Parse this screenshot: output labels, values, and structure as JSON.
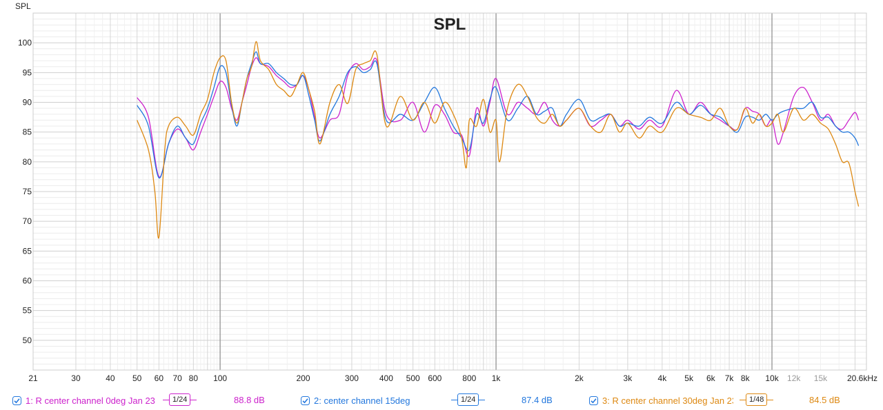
{
  "chart_data": {
    "type": "line",
    "title": "SPL",
    "ylabel": "SPL",
    "xlabel": "",
    "x_unit": "kHz",
    "xscale": "log",
    "xlim": [
      21,
      22000
    ],
    "ylim": [
      45,
      105
    ],
    "yticks": [
      50,
      55,
      60,
      65,
      70,
      75,
      80,
      85,
      90,
      95,
      100
    ],
    "xtick_labels": [
      {
        "f": 21,
        "label": "21"
      },
      {
        "f": 30,
        "label": "30"
      },
      {
        "f": 40,
        "label": "40"
      },
      {
        "f": 50,
        "label": "50"
      },
      {
        "f": 60,
        "label": "60"
      },
      {
        "f": 70,
        "label": "70"
      },
      {
        "f": 80,
        "label": "80"
      },
      {
        "f": 100,
        "label": "100"
      },
      {
        "f": 200,
        "label": "200"
      },
      {
        "f": 300,
        "label": "300"
      },
      {
        "f": 400,
        "label": "400"
      },
      {
        "f": 500,
        "label": "500"
      },
      {
        "f": 600,
        "label": "600"
      },
      {
        "f": 800,
        "label": "800"
      },
      {
        "f": 1000,
        "label": "1k"
      },
      {
        "f": 2000,
        "label": "2k"
      },
      {
        "f": 3000,
        "label": "3k"
      },
      {
        "f": 4000,
        "label": "4k"
      },
      {
        "f": 5000,
        "label": "5k"
      },
      {
        "f": 6000,
        "label": "6k"
      },
      {
        "f": 7000,
        "label": "7k"
      },
      {
        "f": 8000,
        "label": "8k"
      },
      {
        "f": 10000,
        "label": "10k"
      },
      {
        "f": 12000,
        "label": "12k"
      },
      {
        "f": 15000,
        "label": "15k"
      },
      {
        "f": 20600,
        "label": "20.6kHz"
      }
    ],
    "grid": true,
    "legend_position": "bottom",
    "series": [
      {
        "name": "1: R center channel 0deg Jan 23",
        "color": "#cc22cc",
        "smoothing": "1/24",
        "average": "88.8 dB",
        "x": [
          50,
          55,
          60,
          65,
          70,
          75,
          80,
          85,
          90,
          95,
          100,
          105,
          110,
          115,
          120,
          125,
          130,
          135,
          140,
          150,
          160,
          170,
          180,
          190,
          200,
          210,
          220,
          230,
          250,
          270,
          290,
          310,
          330,
          350,
          370,
          400,
          450,
          500,
          550,
          600,
          650,
          700,
          750,
          800,
          850,
          900,
          950,
          1000,
          1100,
          1200,
          1300,
          1400,
          1500,
          1600,
          1700,
          1800,
          2000,
          2200,
          2400,
          2600,
          2800,
          3000,
          3300,
          3600,
          4000,
          4500,
          5000,
          5500,
          6000,
          6500,
          7000,
          7500,
          8000,
          8500,
          9000,
          9500,
          10000,
          10500,
          11000,
          12000,
          13000,
          14000,
          15000,
          16000,
          17000,
          18000,
          19000,
          20000,
          20600
        ],
        "y": [
          90.8,
          87.5,
          77.5,
          83,
          85.5,
          84,
          82,
          85,
          88,
          91,
          93.5,
          92.5,
          89,
          87,
          90,
          93,
          96,
          97.5,
          96.5,
          96,
          94.5,
          93.5,
          92.5,
          93,
          94.5,
          92,
          87.5,
          84,
          87,
          88,
          94.5,
          96.5,
          95.5,
          96,
          97,
          88,
          87,
          90,
          85,
          89.5,
          88,
          85,
          84.5,
          81,
          89,
          86,
          90,
          94,
          88,
          90,
          89,
          88,
          90,
          87,
          86,
          87,
          89,
          86,
          87,
          88,
          86,
          87,
          85.5,
          87,
          86,
          92,
          88,
          90,
          88,
          87,
          86,
          85.5,
          89,
          88.5,
          88,
          86,
          87,
          83,
          85,
          91,
          92.5,
          90,
          87,
          88,
          86,
          85.5,
          87,
          88.3,
          87
        ]
      },
      {
        "name": "2: center channel 15deg",
        "color": "#2277dd",
        "smoothing": "1/24",
        "average": "87.4 dB",
        "x": [
          50,
          55,
          60,
          65,
          70,
          75,
          80,
          85,
          90,
          95,
          100,
          105,
          110,
          115,
          120,
          125,
          130,
          135,
          140,
          150,
          160,
          170,
          180,
          190,
          200,
          210,
          220,
          230,
          250,
          270,
          290,
          310,
          330,
          350,
          370,
          400,
          450,
          500,
          550,
          600,
          650,
          700,
          750,
          800,
          850,
          900,
          950,
          1000,
          1100,
          1200,
          1300,
          1400,
          1500,
          1600,
          1700,
          1800,
          2000,
          2200,
          2400,
          2600,
          2800,
          3000,
          3300,
          3600,
          4000,
          4500,
          5000,
          5500,
          6000,
          6500,
          7000,
          7500,
          8000,
          8500,
          9000,
          9500,
          10000,
          10500,
          11000,
          12000,
          13000,
          14000,
          15000,
          16000,
          17000,
          18000,
          19000,
          20000,
          20600
        ],
        "y": [
          89.5,
          86,
          77.3,
          83,
          86,
          84,
          83,
          86.5,
          89,
          92.5,
          96,
          95,
          89.5,
          86,
          90,
          94,
          96.5,
          98.5,
          96.5,
          96.5,
          95,
          94,
          93,
          93,
          94.5,
          91,
          87,
          83.5,
          88,
          91,
          95,
          96,
          95,
          95.5,
          96.5,
          87,
          88,
          87,
          90,
          92.5,
          89,
          86,
          84,
          82,
          88,
          86.5,
          90.5,
          92.5,
          87,
          89,
          91,
          88,
          88.5,
          89,
          86,
          88,
          90.5,
          87,
          87.5,
          88,
          86,
          86.5,
          86,
          87.5,
          86.5,
          90,
          88,
          89.5,
          88,
          87.5,
          86,
          85,
          87.5,
          87.5,
          87,
          88,
          87,
          88,
          88.5,
          89,
          89,
          90,
          87.5,
          87.5,
          86,
          85,
          85,
          84,
          82.7
        ]
      },
      {
        "name": "3: R center channel 30deg Jan 23",
        "color": "#dd8811",
        "smoothing": "1/48",
        "average": "84.5 dB",
        "x": [
          50,
          55,
          58,
          60,
          63,
          65,
          70,
          75,
          80,
          85,
          90,
          95,
          100,
          105,
          110,
          115,
          120,
          125,
          130,
          135,
          140,
          150,
          160,
          170,
          180,
          190,
          200,
          210,
          220,
          230,
          250,
          270,
          290,
          310,
          330,
          350,
          370,
          400,
          450,
          500,
          550,
          600,
          650,
          700,
          750,
          780,
          800,
          850,
          900,
          950,
          1000,
          1030,
          1100,
          1200,
          1300,
          1400,
          1500,
          1600,
          1700,
          1800,
          2000,
          2200,
          2400,
          2600,
          2800,
          3000,
          3300,
          3600,
          4000,
          4500,
          5000,
          5500,
          6000,
          6500,
          7000,
          7500,
          8000,
          8500,
          9000,
          9500,
          10000,
          10500,
          11000,
          12000,
          13000,
          14000,
          15000,
          16000,
          17000,
          18000,
          19000,
          20000,
          20600
        ],
        "y": [
          87,
          82,
          75,
          67.3,
          82,
          86,
          87.5,
          86,
          84.5,
          88,
          90.5,
          95,
          97.5,
          97,
          90,
          86.5,
          90,
          94,
          96,
          100.2,
          97,
          95.5,
          93,
          92,
          91,
          93,
          95,
          92,
          88.5,
          83,
          90,
          93,
          89.8,
          95.5,
          96.5,
          97,
          98,
          86,
          91,
          87,
          90,
          86.5,
          90,
          88,
          84,
          79,
          87,
          86,
          90.5,
          85,
          87,
          80,
          89,
          93,
          91,
          87.5,
          86.5,
          88,
          86,
          87,
          89,
          86,
          85,
          88,
          85,
          86.5,
          84,
          86,
          85,
          89,
          88,
          87.5,
          87,
          89,
          86,
          85.5,
          89,
          86.5,
          88,
          86,
          86.5,
          88,
          85,
          89,
          87,
          88,
          86.5,
          85.5,
          83,
          80,
          79.8,
          75,
          72.5
        ]
      }
    ]
  }
}
